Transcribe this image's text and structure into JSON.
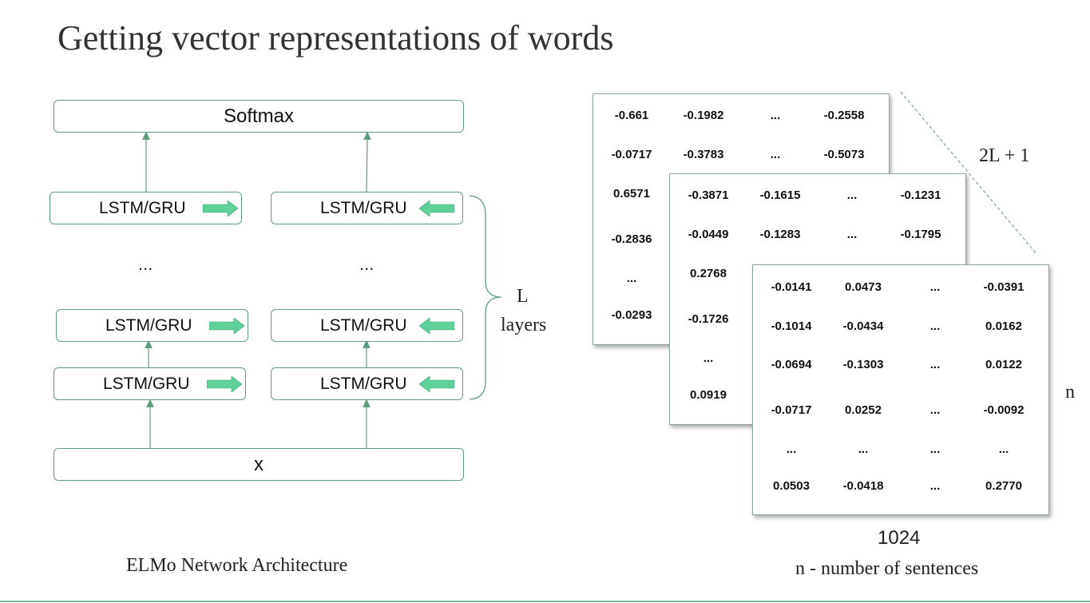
{
  "title": "Getting vector representations of words",
  "network": {
    "softmax_label": "Softmax",
    "input_label": "x",
    "cell_label": "LSTM/GRU",
    "ellipsis": "...",
    "layers_brace_line1": "L",
    "layers_brace_line2": "layers",
    "caption": "ELMo Network Architecture",
    "accent_color": "#5fd098",
    "line_color": "#5f9e7c"
  },
  "matrices": {
    "back": [
      [
        "-0.661",
        "-0.1982",
        "...",
        "-0.2558"
      ],
      [
        "-0.0717",
        "-0.3783",
        "...",
        "-0.5073"
      ],
      [
        "0.6571"
      ],
      [
        "-0.2836"
      ],
      [
        "..."
      ],
      [
        "-0.0293"
      ]
    ],
    "middle": [
      [
        "-0.3871",
        "-0.1615",
        "...",
        "-0.1231"
      ],
      [
        "-0.0449",
        "-0.1283",
        "...",
        "-0.1795"
      ],
      [
        "0.2768"
      ],
      [
        "-0.1726"
      ],
      [
        "..."
      ],
      [
        "0.0919"
      ]
    ],
    "front": [
      [
        "-0.0141",
        "0.0473",
        "...",
        "-0.0391"
      ],
      [
        "-0.1014",
        "-0.0434",
        "...",
        "0.0162"
      ],
      [
        "-0.0694",
        "-0.1303",
        "...",
        "0.0122"
      ],
      [
        "-0.0717",
        "0.0252",
        "...",
        "-0.0092"
      ],
      [
        "...",
        "...",
        "...",
        "..."
      ],
      [
        "0.0503",
        "-0.0418",
        "...",
        "0.2770"
      ]
    ],
    "depth_label": "2L + 1",
    "rows_label": "n",
    "cols_label": "1024",
    "caption": "n - number of sentences"
  }
}
